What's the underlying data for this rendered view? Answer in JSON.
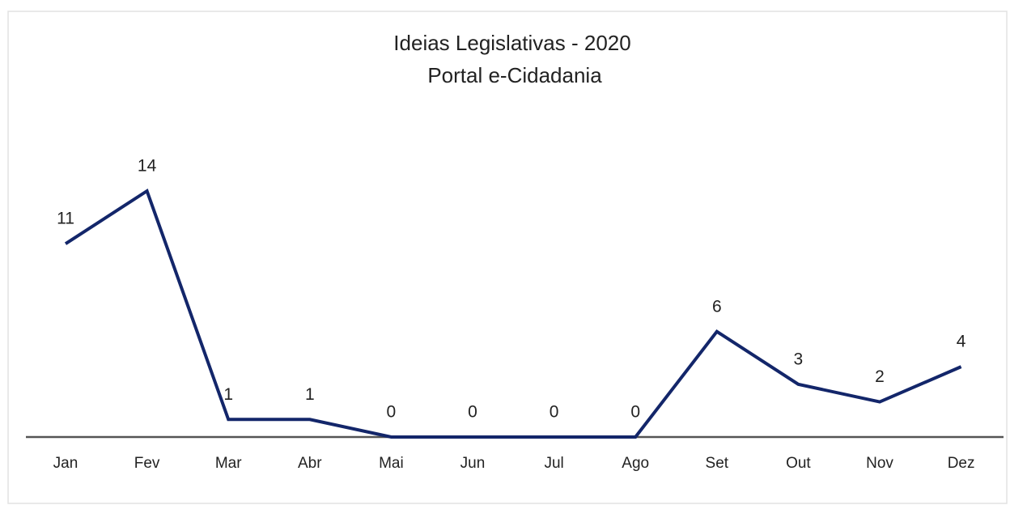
{
  "chart_data": {
    "type": "line",
    "title": "Ideias Legislativas - 2020",
    "subtitle": "Portal e-Cidadania",
    "categories": [
      "Jan",
      "Fev",
      "Mar",
      "Abr",
      "Mai",
      "Jun",
      "Jul",
      "Ago",
      "Set",
      "Out",
      "Nov",
      "Dez"
    ],
    "values": [
      11,
      14,
      1,
      1,
      0,
      0,
      0,
      0,
      6,
      3,
      2,
      4
    ],
    "color": "#13266a",
    "data_labels": true
  }
}
